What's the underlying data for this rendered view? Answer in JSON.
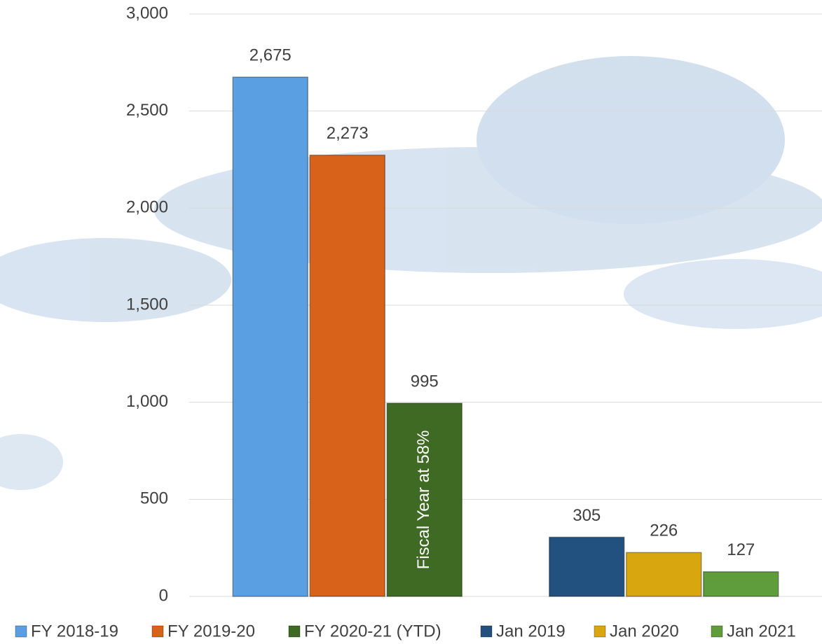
{
  "chart_data": {
    "type": "bar",
    "categories": [
      null,
      null
    ],
    "series": [
      {
        "name": "FY 2018-19",
        "color": "#5b9fe3",
        "values": [
          2675,
          null
        ],
        "value_labels": [
          "2,675",
          null
        ]
      },
      {
        "name": "FY 2019-20",
        "color": "#d9621a",
        "values": [
          2273,
          null
        ],
        "value_labels": [
          "2,273",
          null
        ]
      },
      {
        "name": "FY 2020-21 (YTD)",
        "color": "#3f6a24",
        "values": [
          995,
          null
        ]
      },
      {
        "name": "Jan 2019",
        "color": "#22507f",
        "values": [
          null,
          305
        ]
      },
      {
        "name": "Jan 2020",
        "color": "#d8a70f",
        "values": [
          null,
          226
        ]
      },
      {
        "name": "Jan 2021",
        "color": "#5f9c3c",
        "values": [
          null,
          127
        ]
      }
    ],
    "annotations": [
      "Fiscal Year at 58%"
    ],
    "ylim": [
      0,
      3000
    ],
    "yticks": [
      0,
      500,
      {
        "value": 1000,
        "label": "1,000"
      },
      {
        "value": 1500,
        "label": "1,500"
      },
      {
        "value": 2000,
        "label": "2,000"
      },
      {
        "value": 2500,
        "label": "2,500"
      },
      {
        "value": 3000,
        "label": "3,000"
      }
    ],
    "grid": true,
    "legend": "bottom"
  }
}
